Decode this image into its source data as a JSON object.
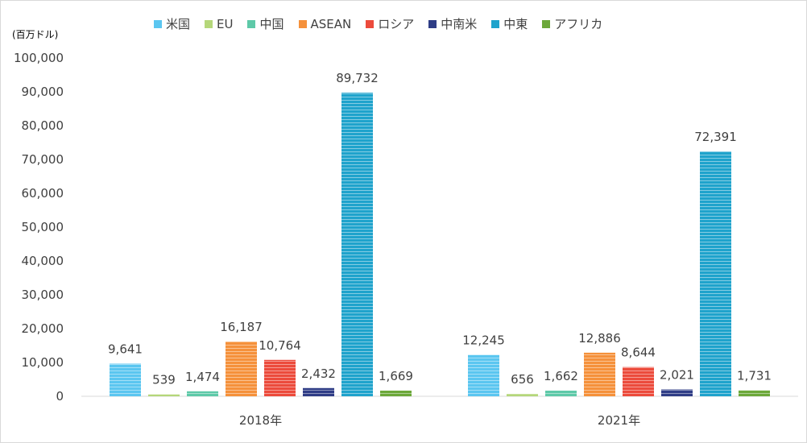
{
  "chart_data": {
    "type": "bar",
    "ylabel": "(百万ドル)",
    "ylim": [
      0,
      100000
    ],
    "yticks": [
      "0",
      "10,000",
      "20,000",
      "30,000",
      "40,000",
      "50,000",
      "60,000",
      "70,000",
      "80,000",
      "90,000",
      "100,000"
    ],
    "categories": [
      "2018年",
      "2021年"
    ],
    "legend_position": "top",
    "grid": false,
    "series": [
      {
        "name": "米国",
        "color": "#5bc6f0",
        "values": [
          9641,
          12245
        ],
        "labels": [
          "9,641",
          "12,245"
        ]
      },
      {
        "name": "EU",
        "color": "#b5d77a",
        "values": [
          539,
          656
        ],
        "labels": [
          "539",
          "656"
        ]
      },
      {
        "name": "中国",
        "color": "#5ec9a8",
        "values": [
          1474,
          1662
        ],
        "labels": [
          "1,474",
          "1,662"
        ]
      },
      {
        "name": "ASEAN",
        "color": "#f5913b",
        "values": [
          16187,
          12886
        ],
        "labels": [
          "16,187",
          "12,886"
        ]
      },
      {
        "name": "ロシア",
        "color": "#ec4b3c",
        "values": [
          10764,
          8644
        ],
        "labels": [
          "10,764",
          "8,644"
        ]
      },
      {
        "name": "中南米",
        "color": "#2f3d86",
        "values": [
          2432,
          2021
        ],
        "labels": [
          "2,432",
          "2,021"
        ]
      },
      {
        "name": "中東",
        "color": "#1fa3cc",
        "values": [
          89732,
          72391
        ],
        "labels": [
          "89,732",
          "72,391"
        ]
      },
      {
        "name": "アフリカ",
        "color": "#6ca83a",
        "values": [
          1669,
          1731
        ],
        "labels": [
          "1,669",
          "1,731"
        ]
      }
    ]
  }
}
